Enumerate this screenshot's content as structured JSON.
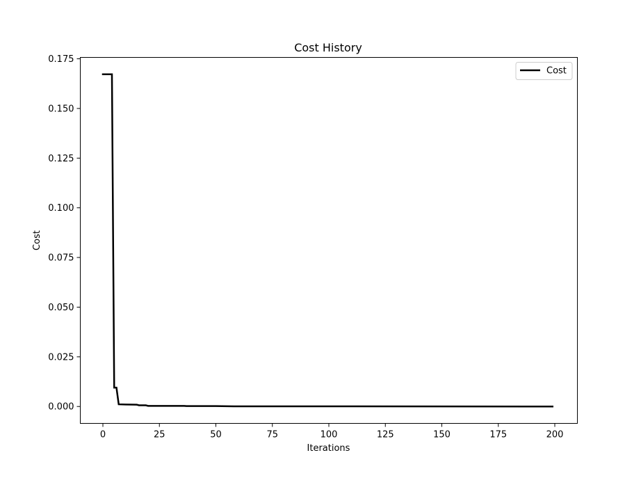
{
  "chart_data": {
    "type": "line",
    "title": "Cost History",
    "xlabel": "Iterations",
    "ylabel": "Cost",
    "xlim": [
      -10,
      210
    ],
    "ylim": [
      -0.0085,
      0.1757
    ],
    "xticks": [
      0,
      25,
      50,
      75,
      100,
      125,
      150,
      175,
      200
    ],
    "yticks": [
      0.0,
      0.025,
      0.05,
      0.075,
      0.1,
      0.125,
      0.15,
      0.175
    ],
    "ytick_labels": [
      "0.000",
      "0.025",
      "0.050",
      "0.075",
      "0.100",
      "0.125",
      "0.150",
      "0.175"
    ],
    "grid": false,
    "legend_position": "top-right",
    "series": [
      {
        "name": "Cost",
        "color": "#000000",
        "x": [
          0,
          4,
          5,
          6,
          7,
          10,
          15,
          16,
          19,
          20,
          36,
          37,
          50,
          58,
          199
        ],
        "y": [
          0.1672,
          0.1672,
          0.0095,
          0.0095,
          0.0011,
          0.001,
          0.0009,
          0.0006,
          0.0006,
          0.0003,
          0.0003,
          0.0002,
          0.0002,
          0.0001,
          0.0
        ]
      }
    ]
  }
}
